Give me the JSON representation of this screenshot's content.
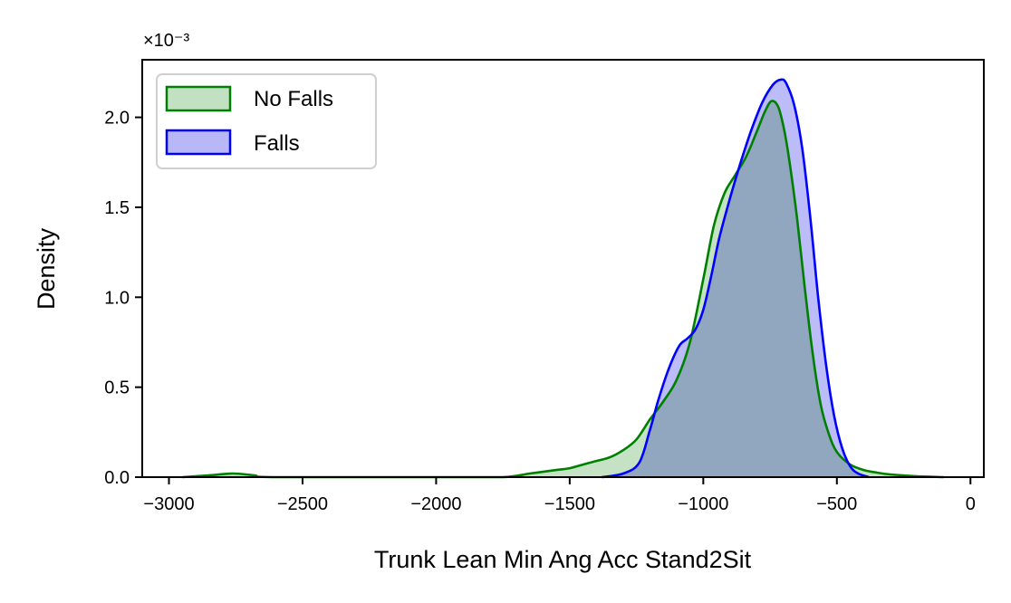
{
  "chart_data": {
    "type": "area",
    "xlabel": "Trunk Lean Min Ang Acc Stand2Sit",
    "ylabel": "Density",
    "y_scale_label": "×10⁻³",
    "xlim": [
      -3100,
      50
    ],
    "ylim": [
      0,
      2.32
    ],
    "x_ticks": [
      -3000,
      -2500,
      -2000,
      -1500,
      -1000,
      -500,
      0
    ],
    "x_tick_labels": [
      "−3000",
      "−2500",
      "−2000",
      "−1500",
      "−1000",
      "−500",
      "0"
    ],
    "y_ticks": [
      0.0,
      0.5,
      1.0,
      1.5,
      2.0
    ],
    "y_tick_labels": [
      "0.0",
      "0.5",
      "1.0",
      "1.5",
      "2.0"
    ],
    "grid": false,
    "legend": {
      "placement": "top-left"
    },
    "series": [
      {
        "name": "No Falls",
        "color": "#008000",
        "fill": "#c2e0c2",
        "points": [
          [
            -2950,
            0.0
          ],
          [
            -2850,
            0.01
          ],
          [
            -2760,
            0.02
          ],
          [
            -2680,
            0.01
          ],
          [
            -2600,
            0.0
          ],
          [
            -2000,
            0.0
          ],
          [
            -1750,
            0.0
          ],
          [
            -1650,
            0.02
          ],
          [
            -1550,
            0.04
          ],
          [
            -1500,
            0.05
          ],
          [
            -1450,
            0.07
          ],
          [
            -1400,
            0.09
          ],
          [
            -1350,
            0.11
          ],
          [
            -1300,
            0.15
          ],
          [
            -1250,
            0.21
          ],
          [
            -1200,
            0.32
          ],
          [
            -1150,
            0.42
          ],
          [
            -1100,
            0.54
          ],
          [
            -1050,
            0.75
          ],
          [
            -1000,
            1.1
          ],
          [
            -960,
            1.4
          ],
          [
            -920,
            1.58
          ],
          [
            -880,
            1.68
          ],
          [
            -840,
            1.78
          ],
          [
            -800,
            1.92
          ],
          [
            -770,
            2.03
          ],
          [
            -745,
            2.09
          ],
          [
            -720,
            2.06
          ],
          [
            -700,
            1.95
          ],
          [
            -680,
            1.78
          ],
          [
            -650,
            1.45
          ],
          [
            -620,
            1.05
          ],
          [
            -590,
            0.68
          ],
          [
            -560,
            0.4
          ],
          [
            -530,
            0.24
          ],
          [
            -500,
            0.14
          ],
          [
            -450,
            0.07
          ],
          [
            -400,
            0.04
          ],
          [
            -350,
            0.025
          ],
          [
            -300,
            0.015
          ],
          [
            -200,
            0.005
          ],
          [
            -100,
            0.0
          ]
        ]
      },
      {
        "name": "Falls",
        "color": "#0000ff",
        "fill": "#b8b8f8",
        "points": [
          [
            -1380,
            0.0
          ],
          [
            -1300,
            0.02
          ],
          [
            -1240,
            0.08
          ],
          [
            -1200,
            0.26
          ],
          [
            -1170,
            0.42
          ],
          [
            -1130,
            0.6
          ],
          [
            -1090,
            0.73
          ],
          [
            -1060,
            0.77
          ],
          [
            -1030,
            0.82
          ],
          [
            -1000,
            0.93
          ],
          [
            -970,
            1.12
          ],
          [
            -940,
            1.33
          ],
          [
            -900,
            1.55
          ],
          [
            -860,
            1.75
          ],
          [
            -820,
            1.93
          ],
          [
            -780,
            2.08
          ],
          [
            -740,
            2.18
          ],
          [
            -710,
            2.21
          ],
          [
            -690,
            2.19
          ],
          [
            -660,
            2.07
          ],
          [
            -630,
            1.83
          ],
          [
            -600,
            1.45
          ],
          [
            -570,
            1.0
          ],
          [
            -540,
            0.62
          ],
          [
            -510,
            0.34
          ],
          [
            -480,
            0.16
          ],
          [
            -450,
            0.06
          ],
          [
            -420,
            0.02
          ],
          [
            -380,
            0.0
          ]
        ]
      }
    ]
  }
}
